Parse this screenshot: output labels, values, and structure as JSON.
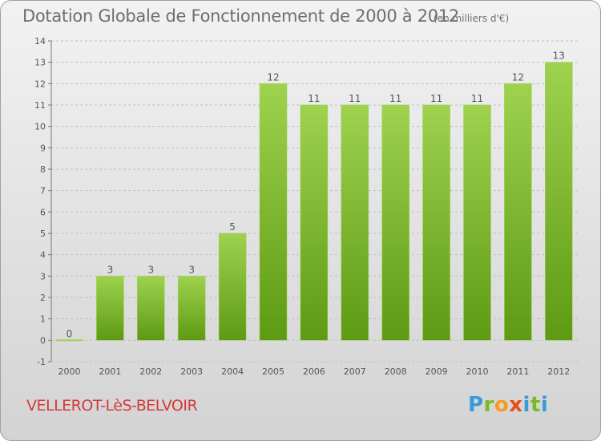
{
  "header": {
    "title": "Dotation Globale de Fonctionnement de 2000 à 2012",
    "unit": "(en milliers d'€)"
  },
  "footer": {
    "commune": "VELLEROT-LèS-BELVOIR",
    "logo": [
      "P",
      "r",
      "o",
      "x",
      "i",
      "t",
      "i"
    ]
  },
  "colors": {
    "bar_light": "#9ed24f",
    "bar_dark": "#5e9a14",
    "grid": "#bfbfbf",
    "axis_text": "#555555"
  },
  "chart_data": {
    "type": "bar",
    "categories": [
      "2000",
      "2001",
      "2002",
      "2003",
      "2004",
      "2005",
      "2006",
      "2007",
      "2008",
      "2009",
      "2010",
      "2011",
      "2012"
    ],
    "values": [
      0,
      3,
      3,
      3,
      5,
      12,
      11,
      11,
      11,
      11,
      11,
      12,
      13
    ],
    "data_labels": [
      "0",
      "3",
      "3",
      "3",
      "5",
      "12",
      "11",
      "11",
      "11",
      "11",
      "11",
      "12",
      "13"
    ],
    "title": "Dotation Globale de Fonctionnement de 2000 à 2012",
    "xlabel": "",
    "ylabel": "",
    "ylim": [
      -1,
      14
    ],
    "yticks": [
      -1,
      0,
      1,
      2,
      3,
      4,
      5,
      6,
      7,
      8,
      9,
      10,
      11,
      12,
      13,
      14
    ],
    "grid": true,
    "legend": "none"
  }
}
